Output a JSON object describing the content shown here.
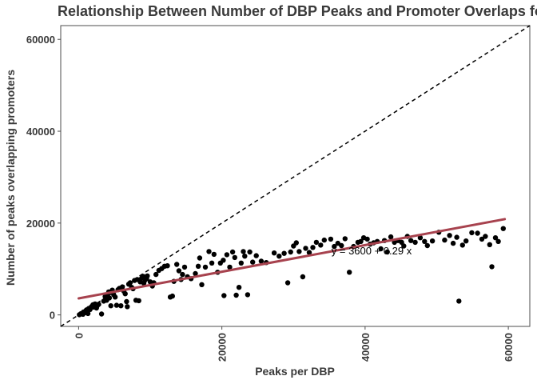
{
  "chart_data": {
    "type": "scatter",
    "title": "Relationship Between Number of DBP Peaks and Promoter Overlaps fo",
    "xlabel": "Peaks per DBP",
    "ylabel": "Number of peaks overlapping promoters",
    "xlim": [
      -2500,
      63000
    ],
    "ylim": [
      -2500,
      63000
    ],
    "x_ticks": [
      0,
      20000,
      40000,
      60000
    ],
    "x_tick_labels": [
      "0",
      "20000",
      "40000",
      "60000"
    ],
    "y_ticks": [
      0,
      20000,
      40000,
      60000
    ],
    "y_tick_labels": [
      "0",
      "20000",
      "40000",
      "60000"
    ],
    "grid": false,
    "legend": "none",
    "annotation": "y = 3600 + 0.29 x",
    "fit_line": {
      "intercept": 3600,
      "slope": 0.29,
      "x_range": [
        0,
        59500
      ],
      "color": "#a7424e"
    },
    "reference_line": {
      "slope": 1,
      "intercept": 0,
      "style": "dashed",
      "color": "#000000"
    },
    "point_color": "#000000",
    "points": [
      [
        100,
        50
      ],
      [
        300,
        250
      ],
      [
        500,
        400
      ],
      [
        600,
        150
      ],
      [
        700,
        650
      ],
      [
        900,
        500
      ],
      [
        1000,
        900
      ],
      [
        1100,
        1100
      ],
      [
        1300,
        300
      ],
      [
        1400,
        1400
      ],
      [
        1600,
        1200
      ],
      [
        1800,
        1800
      ],
      [
        2000,
        2200
      ],
      [
        2100,
        1700
      ],
      [
        2300,
        2400
      ],
      [
        2500,
        1500
      ],
      [
        2600,
        2000
      ],
      [
        2800,
        2300
      ],
      [
        3200,
        200
      ],
      [
        3500,
        3000
      ],
      [
        3700,
        4000
      ],
      [
        3900,
        3200
      ],
      [
        4000,
        4200
      ],
      [
        4200,
        5000
      ],
      [
        4300,
        3700
      ],
      [
        4500,
        2000
      ],
      [
        4700,
        5400
      ],
      [
        4900,
        4400
      ],
      [
        5100,
        3900
      ],
      [
        5300,
        2100
      ],
      [
        5500,
        5500
      ],
      [
        5700,
        5800
      ],
      [
        5900,
        2000
      ],
      [
        6100,
        6100
      ],
      [
        6300,
        5200
      ],
      [
        6500,
        4600
      ],
      [
        6700,
        2900
      ],
      [
        6800,
        1800
      ],
      [
        7000,
        6700
      ],
      [
        7200,
        7000
      ],
      [
        7400,
        6000
      ],
      [
        7600,
        5700
      ],
      [
        7800,
        7500
      ],
      [
        8000,
        3200
      ],
      [
        8200,
        7700
      ],
      [
        8400,
        3100
      ],
      [
        8600,
        7200
      ],
      [
        8800,
        8000
      ],
      [
        9000,
        8400
      ],
      [
        9100,
        6900
      ],
      [
        9300,
        7600
      ],
      [
        9500,
        7900
      ],
      [
        9600,
        8500
      ],
      [
        10000,
        7200
      ],
      [
        10300,
        6300
      ],
      [
        10500,
        7000
      ],
      [
        10800,
        8800
      ],
      [
        11200,
        9700
      ],
      [
        11600,
        10100
      ],
      [
        12000,
        10600
      ],
      [
        12400,
        10700
      ],
      [
        12800,
        3900
      ],
      [
        13100,
        4100
      ],
      [
        13300,
        7300
      ],
      [
        13700,
        11000
      ],
      [
        14000,
        9600
      ],
      [
        14300,
        7700
      ],
      [
        14500,
        8800
      ],
      [
        14800,
        10400
      ],
      [
        15200,
        8300
      ],
      [
        15700,
        7900
      ],
      [
        16300,
        9000
      ],
      [
        16700,
        10600
      ],
      [
        16900,
        12400
      ],
      [
        17200,
        6600
      ],
      [
        17700,
        10400
      ],
      [
        18200,
        13800
      ],
      [
        18600,
        11300
      ],
      [
        18900,
        13200
      ],
      [
        19400,
        9300
      ],
      [
        19800,
        11300
      ],
      [
        20200,
        11900
      ],
      [
        20300,
        4200
      ],
      [
        20700,
        13100
      ],
      [
        21100,
        10400
      ],
      [
        21500,
        13700
      ],
      [
        21800,
        12500
      ],
      [
        22000,
        4300
      ],
      [
        22400,
        6000
      ],
      [
        22700,
        11300
      ],
      [
        23000,
        13800
      ],
      [
        23200,
        12800
      ],
      [
        23600,
        4400
      ],
      [
        23900,
        13700
      ],
      [
        24300,
        11500
      ],
      [
        24800,
        12900
      ],
      [
        25500,
        11700
      ],
      [
        26200,
        11400
      ],
      [
        27300,
        13500
      ],
      [
        28000,
        12800
      ],
      [
        28700,
        13400
      ],
      [
        29200,
        7000
      ],
      [
        29600,
        13700
      ],
      [
        30000,
        15000
      ],
      [
        30400,
        15700
      ],
      [
        30800,
        13800
      ],
      [
        31300,
        8300
      ],
      [
        31700,
        14500
      ],
      [
        32200,
        13600
      ],
      [
        32700,
        14700
      ],
      [
        33200,
        15800
      ],
      [
        33800,
        15200
      ],
      [
        34300,
        16300
      ],
      [
        35200,
        16500
      ],
      [
        35700,
        14900
      ],
      [
        36200,
        15600
      ],
      [
        36700,
        15100
      ],
      [
        37200,
        16600
      ],
      [
        37800,
        9300
      ],
      [
        38400,
        14900
      ],
      [
        39000,
        15800
      ],
      [
        39400,
        16000
      ],
      [
        39800,
        16800
      ],
      [
        40300,
        16500
      ],
      [
        40700,
        15400
      ],
      [
        41200,
        15700
      ],
      [
        41700,
        16000
      ],
      [
        42200,
        14400
      ],
      [
        42700,
        16200
      ],
      [
        43100,
        13700
      ],
      [
        43600,
        17000
      ],
      [
        44100,
        15800
      ],
      [
        44600,
        16200
      ],
      [
        45100,
        15800
      ],
      [
        45400,
        15000
      ],
      [
        45900,
        17100
      ],
      [
        46400,
        16200
      ],
      [
        47000,
        15800
      ],
      [
        47700,
        16800
      ],
      [
        48300,
        16000
      ],
      [
        48700,
        15100
      ],
      [
        49400,
        16100
      ],
      [
        50300,
        18000
      ],
      [
        51100,
        16300
      ],
      [
        51800,
        17300
      ],
      [
        52300,
        15600
      ],
      [
        52800,
        16900
      ],
      [
        53100,
        3000
      ],
      [
        53600,
        15200
      ],
      [
        54100,
        16100
      ],
      [
        54900,
        17900
      ],
      [
        55700,
        17800
      ],
      [
        56300,
        16500
      ],
      [
        56800,
        17100
      ],
      [
        57400,
        15300
      ],
      [
        57700,
        10500
      ],
      [
        58200,
        16800
      ],
      [
        58600,
        16000
      ],
      [
        59300,
        18800
      ]
    ]
  }
}
